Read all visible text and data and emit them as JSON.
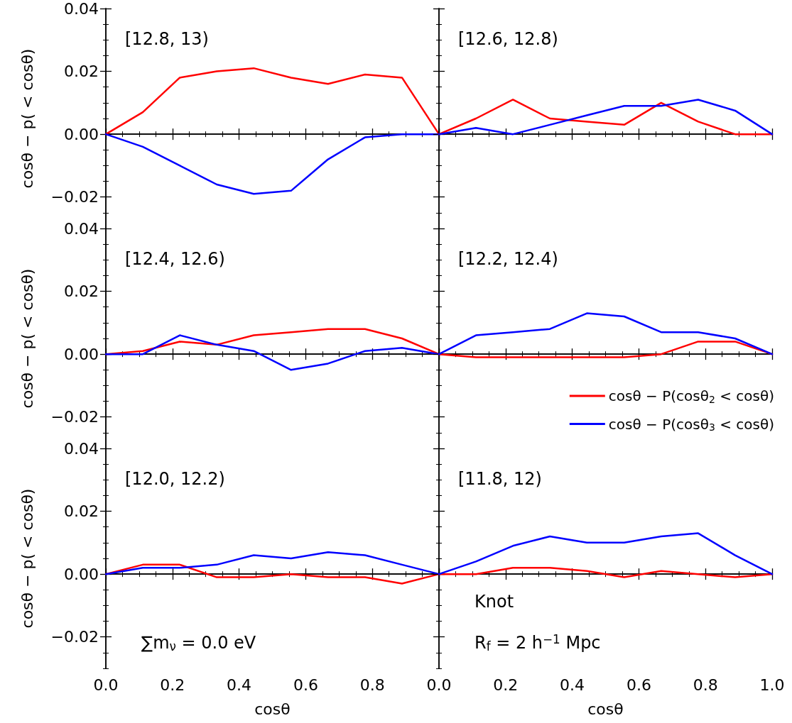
{
  "chart_data": [
    {
      "type": "line",
      "title": "[12.8, 13)",
      "ylabel": "cosθ − p( < cosθ)",
      "x": [
        0,
        0.111,
        0.222,
        0.333,
        0.444,
        0.556,
        0.667,
        0.778,
        0.889,
        1
      ],
      "series": [
        {
          "color": "#ff0000",
          "values": [
            0,
            0.007,
            0.018,
            0.02,
            0.021,
            0.018,
            0.016,
            0.019,
            0.018,
            0
          ]
        },
        {
          "color": "#0000ff",
          "values": [
            0,
            -0.004,
            -0.01,
            -0.016,
            -0.019,
            -0.018,
            -0.008,
            -0.001,
            0.0,
            0
          ]
        }
      ],
      "xlim": [
        0,
        1
      ],
      "xticks": [
        0,
        0.2,
        0.4,
        0.6,
        0.8,
        1
      ],
      "ylim": [
        -0.03,
        0.04
      ],
      "yticks": [
        {
          "value": -0.02,
          "label": "−0.02"
        },
        {
          "value": 0,
          "label": "0.00"
        },
        {
          "value": 0.02,
          "label": "0.02"
        },
        {
          "value": 0.04,
          "label": "0.04"
        }
      ],
      "tick_labels": "y",
      "line_style": "solid"
    },
    {
      "type": "line",
      "title": "[12.6, 12.8)",
      "x": [
        0,
        0.111,
        0.222,
        0.333,
        0.444,
        0.556,
        0.667,
        0.778,
        0.889,
        1
      ],
      "series": [
        {
          "color": "#ff0000",
          "values": [
            0,
            0.005,
            0.011,
            0.005,
            0.004,
            0.003,
            0.01,
            0.004,
            0.0,
            0
          ]
        },
        {
          "color": "#0000ff",
          "values": [
            0,
            0.002,
            0.0,
            0.003,
            0.006,
            0.009,
            0.009,
            0.011,
            0.0075,
            0
          ]
        }
      ],
      "xlim": [
        0,
        1
      ],
      "xticks": [
        0,
        0.2,
        0.4,
        0.6,
        0.8,
        1
      ],
      "ylim": [
        -0.03,
        0.04
      ],
      "yticks": [
        -0.02,
        0,
        0.02,
        0.04
      ],
      "tick_labels": false,
      "line_style": "solid"
    },
    {
      "type": "line",
      "title": "[12.4, 12.6)",
      "ylabel": "cosθ − p( < cosθ)",
      "x": [
        0,
        0.111,
        0.222,
        0.333,
        0.444,
        0.556,
        0.667,
        0.778,
        0.889,
        1
      ],
      "series": [
        {
          "color": "#ff0000",
          "values": [
            0,
            0.001,
            0.004,
            0.003,
            0.006,
            0.007,
            0.008,
            0.008,
            0.005,
            0
          ]
        },
        {
          "color": "#0000ff",
          "values": [
            0,
            0.0,
            0.006,
            0.003,
            0.001,
            -0.005,
            -0.003,
            0.001,
            0.002,
            0
          ]
        }
      ],
      "xlim": [
        0,
        1
      ],
      "xticks": [
        0,
        0.2,
        0.4,
        0.6,
        0.8,
        1
      ],
      "ylim": [
        -0.03,
        0.04
      ],
      "yticks": [
        {
          "value": -0.02,
          "label": "−0.02"
        },
        {
          "value": 0,
          "label": "0.00"
        },
        {
          "value": 0.02,
          "label": "0.02"
        },
        {
          "value": 0.04,
          "label": "0.04"
        }
      ],
      "tick_labels": "y",
      "line_style": "solid"
    },
    {
      "type": "line",
      "title": "[12.2, 12.4)",
      "x": [
        0,
        0.111,
        0.222,
        0.333,
        0.444,
        0.556,
        0.667,
        0.778,
        0.889,
        1
      ],
      "series": [
        {
          "name": "cosθ − P(cosθ$_{2}$ < cosθ)",
          "color": "#ff0000",
          "values": [
            0,
            -0.001,
            -0.001,
            -0.001,
            -0.001,
            -0.001,
            0.0,
            0.004,
            0.004,
            0
          ]
        },
        {
          "name": "cosθ − P(cosθ$_{3}$ < cosθ)",
          "color": "#0000ff",
          "values": [
            0,
            0.006,
            0.007,
            0.008,
            0.013,
            0.012,
            0.007,
            0.007,
            0.005,
            0
          ]
        }
      ],
      "xlim": [
        0,
        1
      ],
      "xticks": [
        0,
        0.2,
        0.4,
        0.6,
        0.8,
        1
      ],
      "ylim": [
        -0.03,
        0.04
      ],
      "yticks": [
        -0.02,
        0,
        0.02,
        0.04
      ],
      "tick_labels": false,
      "legend": "bottom right",
      "line_style": "solid"
    },
    {
      "type": "line",
      "title": "[12.0, 12.2)",
      "xlabel": "cosθ",
      "ylabel": "cosθ − p( < cosθ)",
      "annotations": [
        "∑m$_{ν}$ = 0.0 eV"
      ],
      "x": [
        0,
        0.111,
        0.222,
        0.333,
        0.444,
        0.556,
        0.667,
        0.778,
        0.889,
        1
      ],
      "series": [
        {
          "color": "#ff0000",
          "values": [
            0,
            0.003,
            0.003,
            -0.001,
            -0.001,
            0.0,
            -0.001,
            -0.001,
            -0.003,
            0
          ]
        },
        {
          "color": "#0000ff",
          "values": [
            0,
            0.002,
            0.002,
            0.003,
            0.006,
            0.005,
            0.007,
            0.006,
            0.003,
            0
          ]
        }
      ],
      "xlim": [
        0,
        1
      ],
      "xticks": [
        {
          "value": 0,
          "label": "0.0"
        },
        {
          "value": 0.2,
          "label": "0.2"
        },
        {
          "value": 0.4,
          "label": "0.4"
        },
        {
          "value": 0.6,
          "label": "0.6"
        },
        {
          "value": 0.8,
          "label": "0.8"
        },
        {
          "value": 1,
          "label": null
        }
      ],
      "ylim": [
        -0.03,
        0.04
      ],
      "yticks": [
        {
          "value": -0.02,
          "label": "−0.02"
        },
        {
          "value": 0,
          "label": "0.00"
        },
        {
          "value": 0.02,
          "label": "0.02"
        },
        {
          "value": 0.04,
          "label": "0.04"
        }
      ],
      "line_style": "solid"
    },
    {
      "type": "line",
      "title": "[11.8, 12)",
      "xlabel": "cosθ",
      "annotations": [
        "Knot",
        "R$_{f}$ = 2 h$^{−1}$ Mpc"
      ],
      "x": [
        0,
        0.111,
        0.222,
        0.333,
        0.444,
        0.556,
        0.667,
        0.778,
        0.889,
        1
      ],
      "series": [
        {
          "color": "#ff0000",
          "values": [
            0,
            0.0,
            0.002,
            0.002,
            0.001,
            -0.001,
            0.001,
            0.0,
            -0.001,
            0
          ]
        },
        {
          "color": "#0000ff",
          "values": [
            0,
            0.004,
            0.009,
            0.012,
            0.01,
            0.01,
            0.012,
            0.013,
            0.006,
            0
          ]
        }
      ],
      "xlim": [
        0,
        1
      ],
      "xticks": [
        {
          "value": 0,
          "label": "0.0"
        },
        {
          "value": 0.2,
          "label": "0.2"
        },
        {
          "value": 0.4,
          "label": "0.4"
        },
        {
          "value": 0.6,
          "label": "0.6"
        },
        {
          "value": 0.8,
          "label": "0.8"
        },
        {
          "value": 1,
          "label": "1.0"
        }
      ],
      "ylim": [
        -0.03,
        0.04
      ],
      "yticks": [
        -0.02,
        0,
        0.02,
        0.04
      ],
      "tick_labels": "x",
      "line_style": "solid"
    }
  ]
}
